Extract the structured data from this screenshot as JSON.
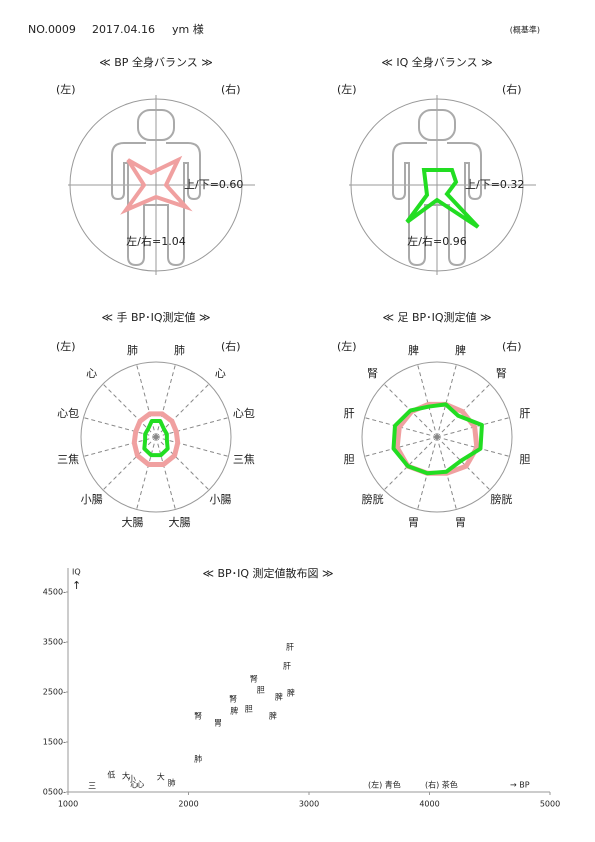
{
  "header": {
    "number": "NO.0009",
    "date": "2017.04.16",
    "name": "ym 様",
    "note": "(概基準)"
  },
  "balance": [
    {
      "title": "≪ BP 全身バランス ≫",
      "left": "(左)",
      "right": "(右)",
      "ratio_ud": "上/下=0.60",
      "ratio_lr": "左/右=1.04",
      "color": "#f0a0a0",
      "text_color": "#e08080"
    },
    {
      "title": "≪ IQ 全身バランス ≫",
      "left": "(左)",
      "right": "(右)",
      "ratio_ud": "上/下=0.32",
      "ratio_lr": "左/右=0.96",
      "color": "#22dd22",
      "text_color": "#229922"
    }
  ],
  "chart_data": [
    {
      "type": "radar",
      "title": "≪ 手 BP･IQ測定値 ≫",
      "left": "(左)",
      "right": "(右)",
      "categories": [
        "肺",
        "心",
        "心包",
        "三焦",
        "小腸",
        "大腸",
        "大腸",
        "小腸",
        "三焦",
        "心包",
        "心",
        "肺"
      ],
      "label_colors": [
        "#1a1aa0",
        "#1a1aa0",
        "#1a1aa0",
        "#8b1a1a",
        "#8b1a1a",
        "#8b1a1a",
        "#8b1a1a",
        "#8b1a1a",
        "#8b1a1a",
        "#1a1aa0",
        "#1a1aa0",
        "#1a1aa0"
      ],
      "rlim": [
        0,
        100
      ],
      "series": [
        {
          "color": "#f0a0a0",
          "values": [
            32,
            30,
            28,
            30,
            35,
            38,
            38,
            35,
            30,
            28,
            30,
            32
          ]
        },
        {
          "color": "#22dd22",
          "values": [
            22,
            15,
            15,
            15,
            22,
            25,
            25,
            22,
            15,
            15,
            15,
            22
          ]
        }
      ]
    },
    {
      "type": "radar",
      "title": "≪ 足 BP･IQ測定値 ≫",
      "left": "(左)",
      "right": "(右)",
      "categories": [
        "脾",
        "腎",
        "肝",
        "胆",
        "膀胱",
        "胃",
        "胃",
        "膀胱",
        "胆",
        "肝",
        "腎",
        "脾"
      ],
      "label_colors": [
        "#1a1aa0",
        "#1a1aa0",
        "#1a1aa0",
        "#8b1a1a",
        "#8b1a1a",
        "#8b1a1a",
        "#8b1a1a",
        "#8b1a1a",
        "#8b1a1a",
        "#1a1aa0",
        "#1a1aa0",
        "#1a1aa0"
      ],
      "rlim": [
        0,
        100
      ],
      "series": [
        {
          "color": "#f0a0a0",
          "values": [
            45,
            48,
            52,
            55,
            55,
            50,
            50,
            55,
            55,
            52,
            48,
            45
          ]
        },
        {
          "color": "#22dd22",
          "values": [
            45,
            40,
            62,
            60,
            45,
            48,
            50,
            55,
            60,
            58,
            50,
            42
          ]
        }
      ]
    },
    {
      "type": "scatter",
      "title": "≪ BP･IQ 測定値散布図 ≫",
      "y_label": "IQ",
      "y_arrow": "↑",
      "x_label": "→ BP",
      "xlim": [
        1000,
        5000
      ],
      "ylim": [
        500,
        4500
      ],
      "xticks": [
        1000,
        2000,
        3000,
        4000,
        5000
      ],
      "yticks": [
        {
          "value": 500,
          "label": "0500-"
        },
        {
          "value": 1500,
          "label": "1500-"
        },
        {
          "value": 2500,
          "label": "2500-"
        },
        {
          "value": 3500,
          "label": "3500-"
        },
        {
          "value": 4500,
          "label": "4500-"
        }
      ],
      "series": [
        {
          "name": "(左) 青色",
          "color": "#1a1aa0",
          "labels": [
            "肝",
            "胆",
            "脾",
            "腎",
            "脾",
            "腎",
            "肺",
            "大",
            "心",
            "心",
            "小",
            "大"
          ],
          "x": [
            2817,
            2600,
            2750,
            2370,
            2700,
            2080,
            1860,
            1770,
            1600,
            1550,
            1530,
            1480
          ],
          "values": [
            3020,
            2540,
            2400,
            2360,
            2020,
            2020,
            680,
            800,
            650,
            640,
            760,
            820
          ]
        },
        {
          "name": "(右) 茶色",
          "color": "#8b1a1a",
          "labels": [
            "肝",
            "腎",
            "脾",
            "胆",
            "脾",
            "胃",
            "肺",
            "三",
            "低"
          ],
          "x": [
            2842,
            2543,
            2850,
            2500,
            2380,
            2245,
            2080,
            1200,
            1360
          ],
          "values": [
            3400,
            2760,
            2480,
            2160,
            2120,
            1880,
            1160,
            620,
            840
          ]
        }
      ]
    }
  ]
}
